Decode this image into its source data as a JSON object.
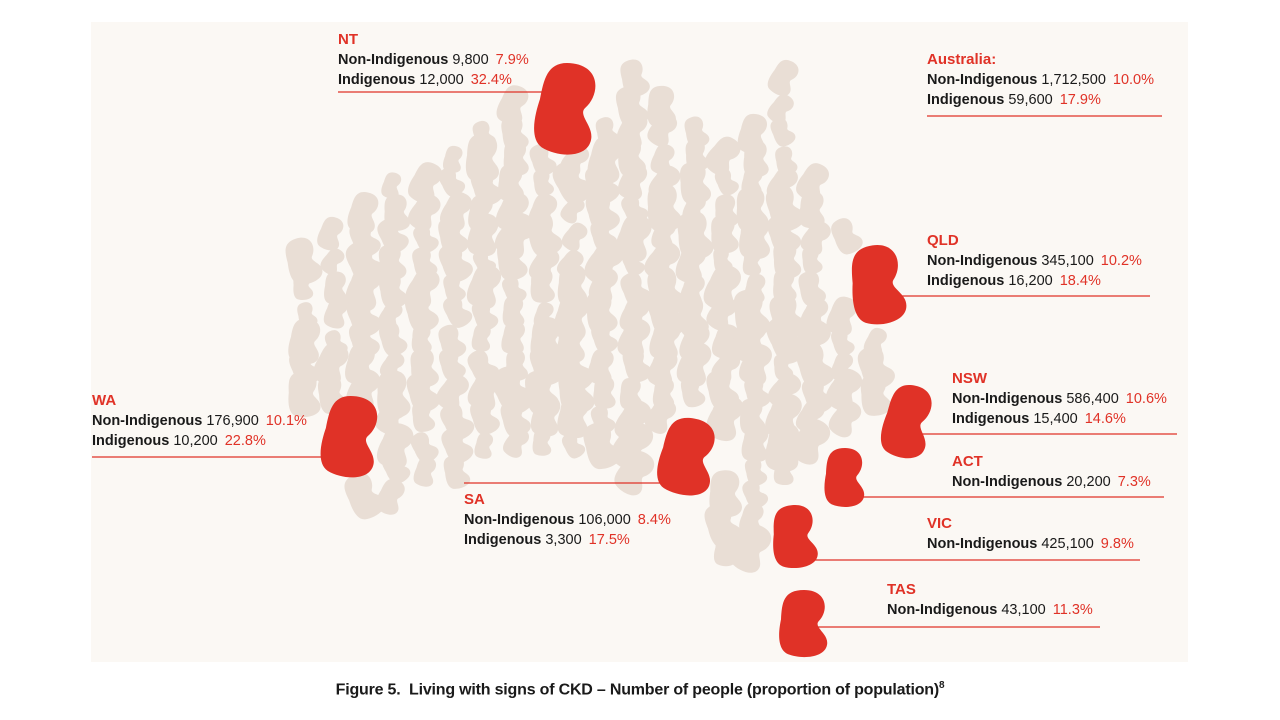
{
  "chart_data": {
    "type": "map-infographic",
    "title": "Living with signs of CKD – Number of people (proportion of population)",
    "figure_label": "Figure 5.",
    "footnote_marker": "8",
    "colors": {
      "highlight": "#e03227",
      "background_kidney": "#e9ded5",
      "panel": "#fbf8f4"
    },
    "national": {
      "name": "Australia:",
      "rows": [
        {
          "group": "Non-Indigenous",
          "count": "1,712,500",
          "pct": "10.0%"
        },
        {
          "group": "Indigenous",
          "count": "59,600",
          "pct": "17.9%"
        }
      ]
    },
    "regions": [
      {
        "name": "NT",
        "rows": [
          {
            "group": "Non-Indigenous",
            "count": "9,800",
            "pct": "7.9%"
          },
          {
            "group": "Indigenous",
            "count": "12,000",
            "pct": "32.4%"
          }
        ]
      },
      {
        "name": "QLD",
        "rows": [
          {
            "group": "Non-Indigenous",
            "count": "345,100",
            "pct": "10.2%"
          },
          {
            "group": "Indigenous",
            "count": "16,200",
            "pct": "18.4%"
          }
        ]
      },
      {
        "name": "NSW",
        "rows": [
          {
            "group": "Non-Indigenous",
            "count": "586,400",
            "pct": "10.6%"
          },
          {
            "group": "Indigenous",
            "count": "15,400",
            "pct": "14.6%"
          }
        ]
      },
      {
        "name": "ACT",
        "rows": [
          {
            "group": "Non-Indigenous",
            "count": "20,200",
            "pct": "7.3%"
          }
        ]
      },
      {
        "name": "VIC",
        "rows": [
          {
            "group": "Non-Indigenous",
            "count": "425,100",
            "pct": "9.8%"
          }
        ]
      },
      {
        "name": "TAS",
        "rows": [
          {
            "group": "Non-Indigenous",
            "count": "43,100",
            "pct": "11.3%"
          }
        ]
      },
      {
        "name": "SA",
        "rows": [
          {
            "group": "Non-Indigenous",
            "count": "106,000",
            "pct": "8.4%"
          },
          {
            "group": "Indigenous",
            "count": "3,300",
            "pct": "17.5%"
          }
        ]
      },
      {
        "name": "WA",
        "rows": [
          {
            "group": "Non-Indigenous",
            "count": "176,900",
            "pct": "10.1%"
          },
          {
            "group": "Indigenous",
            "count": "10,200",
            "pct": "22.8%"
          }
        ]
      }
    ]
  }
}
